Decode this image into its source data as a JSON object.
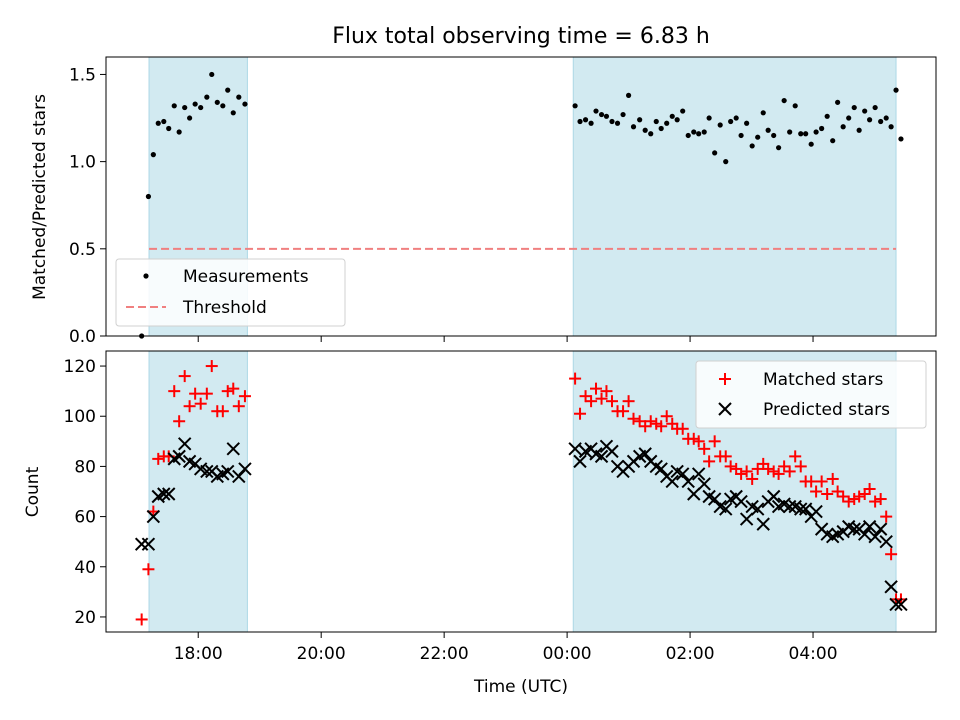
{
  "colors": {
    "observing_window": "#add8e6",
    "measurements": "#000000",
    "threshold": "#f08080",
    "matched": "#ff0000",
    "predicted": "#000000"
  },
  "chart_data": [
    {
      "type": "scatter",
      "title": "Flux total observing time = 6.83 h",
      "xlabel": "",
      "ylabel": "Matched/Predicted stars",
      "x_unit": "time of day (UTC), hours; values after midnight written as 24+h",
      "xlim": [
        16.5,
        30.0
      ],
      "ylim": [
        0.0,
        1.6
      ],
      "yticks": [
        "0.0",
        "0.5",
        "1.0",
        "1.5"
      ],
      "grid": false,
      "legend": {
        "placement": "lower-left",
        "entries": [
          "Measurements",
          "Threshold"
        ]
      },
      "shaded_windows": [
        [
          17.2,
          18.8
        ],
        [
          24.1,
          29.35
        ]
      ],
      "threshold": {
        "name": "Threshold",
        "y": 0.5,
        "x": [
          17.2,
          29.35
        ]
      },
      "series": [
        {
          "name": "Measurements",
          "marker": "dot",
          "x": [
            17.08,
            17.19,
            17.27,
            17.35,
            17.44,
            17.52,
            17.61,
            17.69,
            17.78,
            17.86,
            17.95,
            18.04,
            18.14,
            18.22,
            18.31,
            18.4,
            18.48,
            18.57,
            18.66,
            18.76,
            24.13,
            24.21,
            24.3,
            24.39,
            24.47,
            24.56,
            24.64,
            24.73,
            24.82,
            24.91,
            25.0,
            25.08,
            25.18,
            25.27,
            25.36,
            25.45,
            25.53,
            25.62,
            25.71,
            25.79,
            25.88,
            25.97,
            26.06,
            26.14,
            26.23,
            26.31,
            26.4,
            26.49,
            26.58,
            26.66,
            26.75,
            26.83,
            26.92,
            27.01,
            27.1,
            27.19,
            27.27,
            27.36,
            27.44,
            27.53,
            27.62,
            27.71,
            27.8,
            27.88,
            27.97,
            28.05,
            28.14,
            28.23,
            28.32,
            28.4,
            28.49,
            28.58,
            28.67,
            28.75,
            28.84,
            28.92,
            29.01,
            29.1,
            29.19,
            29.27,
            29.35,
            29.43
          ],
          "y": [
            0.0,
            0.8,
            1.04,
            1.22,
            1.23,
            1.19,
            1.32,
            1.17,
            1.31,
            1.25,
            1.33,
            1.31,
            1.37,
            1.5,
            1.34,
            1.32,
            1.41,
            1.28,
            1.37,
            1.33,
            1.32,
            1.23,
            1.24,
            1.22,
            1.29,
            1.27,
            1.26,
            1.23,
            1.22,
            1.27,
            1.38,
            1.2,
            1.24,
            1.18,
            1.16,
            1.23,
            1.19,
            1.22,
            1.26,
            1.24,
            1.29,
            1.15,
            1.17,
            1.16,
            1.17,
            1.25,
            1.05,
            1.21,
            1.0,
            1.23,
            1.25,
            1.15,
            1.22,
            1.09,
            1.14,
            1.28,
            1.18,
            1.15,
            1.08,
            1.35,
            1.17,
            1.32,
            1.16,
            1.16,
            1.1,
            1.17,
            1.19,
            1.26,
            1.12,
            1.34,
            1.2,
            1.25,
            1.31,
            1.18,
            1.29,
            1.24,
            1.31,
            1.23,
            1.25,
            1.2,
            1.41,
            1.13
          ]
        }
      ]
    },
    {
      "type": "scatter",
      "title": "",
      "xlabel": "Time (UTC)",
      "ylabel": "Count",
      "x_unit": "time of day (UTC), hours; values after midnight written as 24+h",
      "xlim": [
        16.5,
        30.0
      ],
      "ylim": [
        14,
        126
      ],
      "xticks": [
        "18:00",
        "20:00",
        "22:00",
        "00:00",
        "02:00",
        "04:00"
      ],
      "yticks": [
        "20",
        "40",
        "60",
        "80",
        "100",
        "120"
      ],
      "grid": false,
      "legend": {
        "placement": "top-right",
        "entries": [
          "Matched stars",
          "Predicted stars"
        ]
      },
      "shaded_windows": [
        [
          17.2,
          18.8
        ],
        [
          24.1,
          29.35
        ]
      ],
      "series": [
        {
          "name": "Matched stars",
          "marker": "plus",
          "x": [
            17.08,
            17.19,
            17.27,
            17.35,
            17.44,
            17.52,
            17.61,
            17.69,
            17.78,
            17.86,
            17.95,
            18.04,
            18.14,
            18.22,
            18.31,
            18.4,
            18.48,
            18.57,
            18.66,
            18.76,
            24.13,
            24.21,
            24.3,
            24.39,
            24.47,
            24.56,
            24.64,
            24.73,
            24.82,
            24.91,
            25.0,
            25.08,
            25.18,
            25.27,
            25.36,
            25.45,
            25.53,
            25.62,
            25.71,
            25.79,
            25.88,
            25.97,
            26.06,
            26.14,
            26.23,
            26.31,
            26.4,
            26.49,
            26.58,
            26.66,
            26.75,
            26.83,
            26.92,
            27.01,
            27.1,
            27.19,
            27.27,
            27.36,
            27.44,
            27.53,
            27.62,
            27.71,
            27.8,
            27.88,
            27.97,
            28.05,
            28.14,
            28.23,
            28.32,
            28.4,
            28.49,
            28.58,
            28.67,
            28.75,
            28.84,
            28.92,
            29.01,
            29.1,
            29.19,
            29.27,
            29.35,
            29.43
          ],
          "y": [
            19,
            39,
            62,
            83,
            84,
            84,
            110,
            98,
            116,
            104,
            109,
            105,
            109,
            120,
            102,
            102,
            110,
            111,
            104,
            108,
            115,
            101,
            108,
            106,
            111,
            107,
            110,
            106,
            102,
            102,
            106,
            99,
            98,
            96,
            98,
            97,
            96,
            100,
            97,
            95,
            95,
            91,
            91,
            90,
            87,
            82,
            90,
            84,
            84,
            80,
            79,
            77,
            78,
            75,
            79,
            81,
            79,
            78,
            77,
            80,
            78,
            84,
            80,
            74,
            74,
            70,
            74,
            69,
            75,
            70,
            68,
            66,
            67,
            68,
            69,
            71,
            66,
            67,
            60,
            45,
            27,
            27
          ]
        },
        {
          "name": "Predicted stars",
          "marker": "x",
          "x": [
            17.08,
            17.19,
            17.27,
            17.35,
            17.44,
            17.52,
            17.61,
            17.69,
            17.78,
            17.86,
            17.95,
            18.04,
            18.14,
            18.22,
            18.31,
            18.4,
            18.48,
            18.57,
            18.66,
            18.76,
            24.13,
            24.21,
            24.3,
            24.39,
            24.47,
            24.56,
            24.64,
            24.73,
            24.82,
            24.91,
            25.0,
            25.08,
            25.18,
            25.27,
            25.36,
            25.45,
            25.53,
            25.62,
            25.71,
            25.79,
            25.88,
            25.97,
            26.06,
            26.14,
            26.23,
            26.31,
            26.4,
            26.49,
            26.58,
            26.66,
            26.75,
            26.83,
            26.92,
            27.01,
            27.1,
            27.19,
            27.27,
            27.36,
            27.44,
            27.53,
            27.62,
            27.71,
            27.8,
            27.88,
            27.97,
            28.05,
            28.14,
            28.23,
            28.32,
            28.4,
            28.49,
            28.58,
            28.67,
            28.75,
            28.84,
            28.92,
            29.01,
            29.1,
            29.19,
            29.27,
            29.35,
            29.43
          ],
          "y": [
            49,
            49,
            60,
            68,
            69,
            69,
            83,
            84,
            89,
            82,
            81,
            79,
            78,
            78,
            76,
            77,
            78,
            87,
            76,
            79,
            87,
            82,
            86,
            87,
            85,
            84,
            88,
            86,
            80,
            78,
            80,
            82,
            84,
            85,
            82,
            80,
            79,
            76,
            74,
            78,
            77,
            74,
            69,
            77,
            73,
            68,
            67,
            64,
            63,
            67,
            68,
            66,
            59,
            64,
            63,
            57,
            66,
            68,
            64,
            65,
            64,
            64,
            63,
            63,
            60,
            62,
            55,
            53,
            52,
            53,
            54,
            56,
            55,
            55,
            53,
            56,
            52,
            55,
            50,
            32,
            25,
            25
          ]
        }
      ]
    }
  ]
}
